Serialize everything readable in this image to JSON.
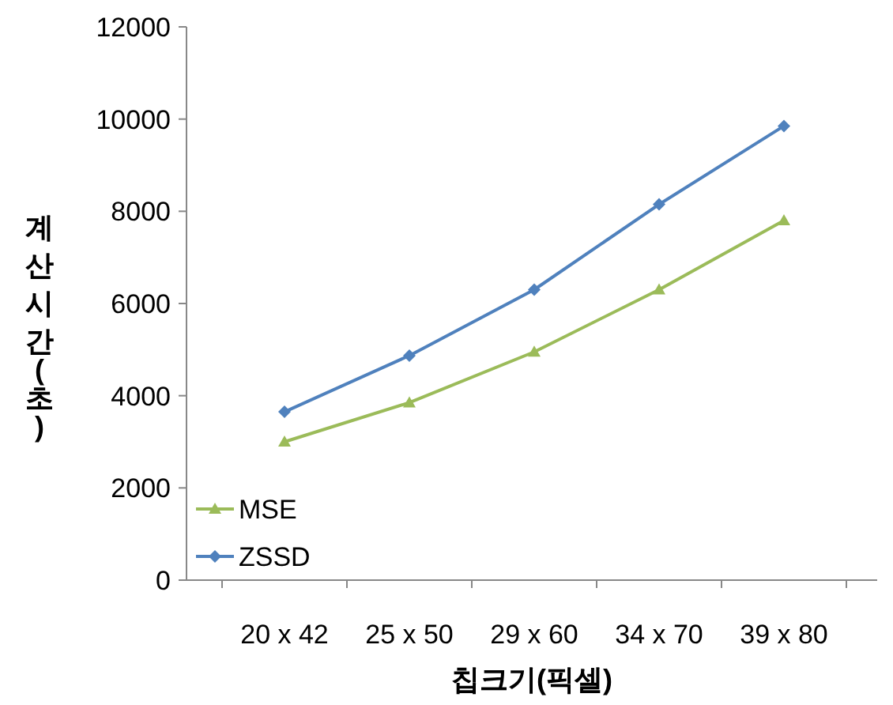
{
  "chart_data": {
    "type": "line",
    "xlabel": "칩크기(픽셀)",
    "ylabel": "계산시간(초)",
    "categories": [
      "20 x 42",
      "25 x 50",
      "29 x 60",
      "34 x 70",
      "39 x 80"
    ],
    "series": [
      {
        "name": "MSE",
        "color": "#9bbb59",
        "marker": "triangle",
        "values": [
          3000,
          3850,
          4950,
          6300,
          7800
        ]
      },
      {
        "name": "ZSSD",
        "color": "#4f81bd",
        "marker": "diamond",
        "values": [
          3650,
          4870,
          6300,
          8150,
          9850
        ]
      }
    ],
    "ylim": [
      0,
      12000
    ],
    "yticks": [
      0,
      2000,
      4000,
      6000,
      8000,
      10000,
      12000
    ],
    "grid": false,
    "legend": "bottom left"
  }
}
